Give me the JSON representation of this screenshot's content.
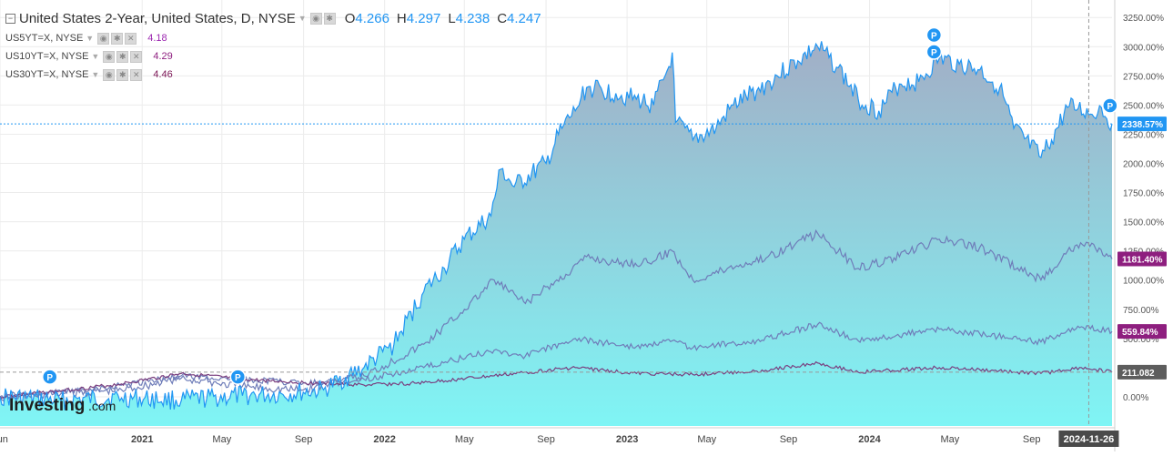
{
  "legend": {
    "title": "United States 2-Year, United States, D, NYSE",
    "open_label": "O",
    "open": "4.266",
    "high_label": "H",
    "high": "4.297",
    "low_label": "L",
    "low": "4.238",
    "close_label": "C",
    "close": "4.247",
    "studies": [
      {
        "symbol": "US5YT=X, NYSE",
        "value": "4.18",
        "color": "#9c27b0"
      },
      {
        "symbol": "US10YT=X, NYSE",
        "value": "4.29",
        "color": "#8e1f7f"
      },
      {
        "symbol": "US30YT=X, NYSE",
        "value": "4.46",
        "color": "#7b1555"
      }
    ]
  },
  "colors": {
    "main_line": "#2196f3",
    "fill_top": "#a2aec6",
    "fill_bottom": "#7ff5f5",
    "cmp_line": "#6f7db9",
    "pill_blue": "#2196f3",
    "pill_purple": "#8e1f7f",
    "pill_gray": "#5d5d5d",
    "pill_dark": "#444444"
  },
  "chart_data": {
    "type": "area",
    "y_scale": "percent change",
    "ylim": [
      -250,
      3400
    ],
    "y_ticks": [
      "3250.00%",
      "3000.00%",
      "2750.00%",
      "2500.00%",
      "2250.00%",
      "2000.00%",
      "1750.00%",
      "1500.00%",
      "1250.00%",
      "1000.00%",
      "750.00%",
      "500.00%",
      "250.00%",
      "0.00%"
    ],
    "y_tick_values": [
      3250,
      3000,
      2750,
      2500,
      2250,
      2000,
      1750,
      1500,
      1250,
      1000,
      750,
      500,
      250,
      0
    ],
    "x_range": [
      "2020-06-01",
      "2024-12-31"
    ],
    "x_ticks": [
      {
        "label": "Jun",
        "date": "2020-06-01"
      },
      {
        "label": "2021",
        "date": "2021-01-01"
      },
      {
        "label": "May",
        "date": "2021-05-01"
      },
      {
        "label": "Sep",
        "date": "2021-09-01"
      },
      {
        "label": "2022",
        "date": "2022-01-01"
      },
      {
        "label": "May",
        "date": "2022-05-01"
      },
      {
        "label": "Sep",
        "date": "2022-09-01"
      },
      {
        "label": "2023",
        "date": "2023-01-01"
      },
      {
        "label": "May",
        "date": "2023-05-01"
      },
      {
        "label": "Sep",
        "date": "2023-09-01"
      },
      {
        "label": "2024",
        "date": "2024-01-01"
      },
      {
        "label": "May",
        "date": "2024-05-01"
      },
      {
        "label": "Sep",
        "date": "2024-09-01"
      }
    ],
    "crosshair_date_label": "2024-11-26",
    "crosshair_date": "2024-11-26",
    "price_line_value": 2338.57,
    "series": [
      {
        "name": "United States 2-Year",
        "role": "main",
        "points": [
          [
            "2020-06-01",
            0
          ],
          [
            "2020-09-01",
            -30
          ],
          [
            "2020-12-01",
            -10
          ],
          [
            "2021-03-01",
            -30
          ],
          [
            "2021-06-01",
            10
          ],
          [
            "2021-08-01",
            20
          ],
          [
            "2021-10-01",
            60
          ],
          [
            "2021-12-01",
            250
          ],
          [
            "2022-01-15",
            450
          ],
          [
            "2022-03-01",
            900
          ],
          [
            "2022-04-01",
            1100
          ],
          [
            "2022-05-01",
            1350
          ],
          [
            "2022-06-10",
            1550
          ],
          [
            "2022-06-25",
            1950
          ],
          [
            "2022-07-15",
            1800
          ],
          [
            "2022-09-01",
            2000
          ],
          [
            "2022-09-25",
            2300
          ],
          [
            "2022-10-15",
            2450
          ],
          [
            "2022-11-01",
            2650
          ],
          [
            "2022-12-15",
            2600
          ],
          [
            "2023-01-15",
            2550
          ],
          [
            "2023-02-10",
            2500
          ],
          [
            "2023-03-05",
            2830
          ],
          [
            "2023-03-10",
            2950
          ],
          [
            "2023-03-15",
            2350
          ],
          [
            "2023-04-10",
            2200
          ],
          [
            "2023-05-15",
            2300
          ],
          [
            "2023-06-10",
            2500
          ],
          [
            "2023-07-15",
            2620
          ],
          [
            "2023-08-15",
            2750
          ],
          [
            "2023-09-15",
            2880
          ],
          [
            "2023-10-15",
            3000
          ],
          [
            "2023-11-15",
            2820
          ],
          [
            "2023-12-15",
            2550
          ],
          [
            "2024-01-15",
            2450
          ],
          [
            "2024-02-15",
            2680
          ],
          [
            "2024-03-15",
            2700
          ],
          [
            "2024-04-15",
            2900
          ],
          [
            "2024-05-15",
            2850
          ],
          [
            "2024-06-15",
            2800
          ],
          [
            "2024-07-15",
            2650
          ],
          [
            "2024-08-05",
            2300
          ],
          [
            "2024-09-15",
            2050
          ],
          [
            "2024-10-01",
            2200
          ],
          [
            "2024-10-25",
            2480
          ],
          [
            "2024-11-10",
            2470
          ],
          [
            "2024-12-01",
            2420
          ],
          [
            "2024-12-15",
            2480
          ],
          [
            "2024-12-31",
            2338
          ]
        ]
      },
      {
        "name": "US5YT=X",
        "role": "compare",
        "last_value": 1181.4,
        "points": [
          [
            "2020-06-01",
            0
          ],
          [
            "2020-09-01",
            30
          ],
          [
            "2020-12-01",
            60
          ],
          [
            "2021-03-01",
            160
          ],
          [
            "2021-06-01",
            90
          ],
          [
            "2021-09-01",
            60
          ],
          [
            "2021-12-01",
            180
          ],
          [
            "2022-03-01",
            450
          ],
          [
            "2022-05-01",
            750
          ],
          [
            "2022-06-15",
            1000
          ],
          [
            "2022-08-01",
            800
          ],
          [
            "2022-10-01",
            1050
          ],
          [
            "2022-11-01",
            1200
          ],
          [
            "2022-12-15",
            1150
          ],
          [
            "2023-02-01",
            1150
          ],
          [
            "2023-03-10",
            1250
          ],
          [
            "2023-04-10",
            1000
          ],
          [
            "2023-06-01",
            1100
          ],
          [
            "2023-08-01",
            1200
          ],
          [
            "2023-10-15",
            1400
          ],
          [
            "2023-12-15",
            1100
          ],
          [
            "2024-02-15",
            1200
          ],
          [
            "2024-04-15",
            1350
          ],
          [
            "2024-06-15",
            1280
          ],
          [
            "2024-09-15",
            1000
          ],
          [
            "2024-10-25",
            1250
          ],
          [
            "2024-11-25",
            1320
          ],
          [
            "2024-12-31",
            1181.4
          ]
        ]
      },
      {
        "name": "US10YT=X",
        "role": "compare",
        "last_value": 559.84,
        "points": [
          [
            "2020-06-01",
            0
          ],
          [
            "2020-09-01",
            40
          ],
          [
            "2020-12-01",
            100
          ],
          [
            "2021-03-01",
            180
          ],
          [
            "2021-06-01",
            150
          ],
          [
            "2021-09-01",
            120
          ],
          [
            "2021-12-01",
            150
          ],
          [
            "2022-03-01",
            250
          ],
          [
            "2022-06-15",
            400
          ],
          [
            "2022-08-01",
            350
          ],
          [
            "2022-10-15",
            500
          ],
          [
            "2022-11-15",
            470
          ],
          [
            "2023-01-15",
            430
          ],
          [
            "2023-03-10",
            480
          ],
          [
            "2023-04-10",
            420
          ],
          [
            "2023-07-15",
            480
          ],
          [
            "2023-10-15",
            620
          ],
          [
            "2023-12-15",
            480
          ],
          [
            "2024-04-15",
            580
          ],
          [
            "2024-06-15",
            540
          ],
          [
            "2024-09-15",
            470
          ],
          [
            "2024-11-15",
            600
          ],
          [
            "2024-12-31",
            559.84
          ]
        ]
      },
      {
        "name": "US30YT=X",
        "role": "compare",
        "last_value": 211.082,
        "points": [
          [
            "2020-06-01",
            0
          ],
          [
            "2020-09-01",
            50
          ],
          [
            "2020-12-01",
            110
          ],
          [
            "2021-03-01",
            200
          ],
          [
            "2021-06-01",
            150
          ],
          [
            "2021-09-01",
            120
          ],
          [
            "2021-12-01",
            100
          ],
          [
            "2022-03-01",
            120
          ],
          [
            "2022-06-15",
            180
          ],
          [
            "2022-10-15",
            250
          ],
          [
            "2023-01-15",
            200
          ],
          [
            "2023-04-10",
            190
          ],
          [
            "2023-07-15",
            220
          ],
          [
            "2023-10-15",
            290
          ],
          [
            "2023-12-15",
            210
          ],
          [
            "2024-04-15",
            250
          ],
          [
            "2024-09-15",
            200
          ],
          [
            "2024-11-15",
            250
          ],
          [
            "2024-12-31",
            211.082
          ]
        ]
      }
    ],
    "pills": [
      {
        "label": "2338.57%",
        "value": 2338.57,
        "color": "#2196f3"
      },
      {
        "label": "1181.40%",
        "value": 1181.4,
        "color": "#8e1f7f"
      },
      {
        "label": "559.84%",
        "value": 559.84,
        "color": "#8e1f7f"
      },
      {
        "label": "211.082",
        "value": 211.082,
        "color": "#5d5d5d"
      }
    ],
    "markers": [
      {
        "label": "P",
        "date": "2024-04-07",
        "value": 3100
      },
      {
        "label": "P",
        "date": "2024-04-07",
        "value": 2955
      },
      {
        "label": "P",
        "date": "2024-12-28",
        "value": 2495
      },
      {
        "label": "P",
        "date": "2020-08-15",
        "value": 170
      },
      {
        "label": "P",
        "date": "2021-05-25",
        "value": 170
      }
    ]
  },
  "watermark": {
    "brand": "Investing",
    "suffix": ".com"
  }
}
